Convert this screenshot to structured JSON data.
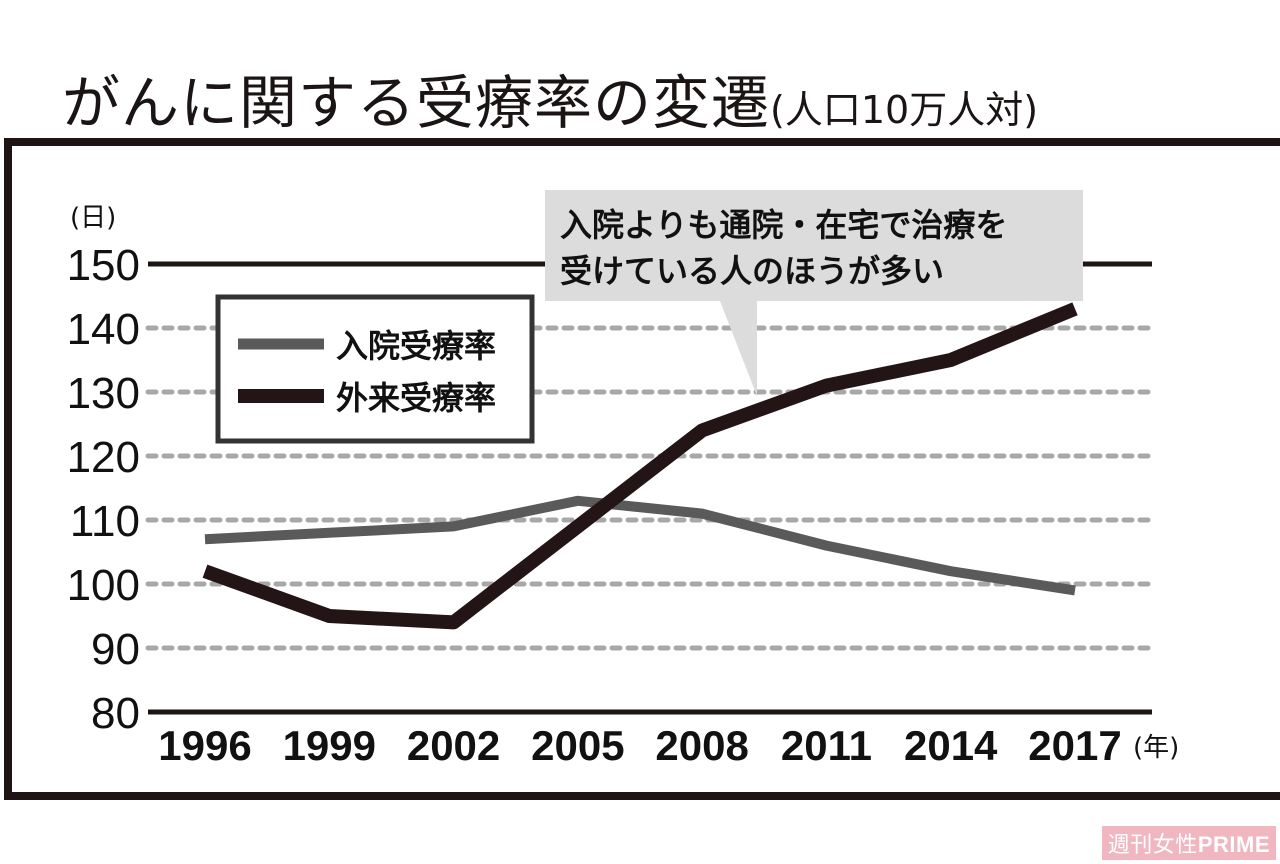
{
  "title": {
    "main": "がんに関する受療率の変遷",
    "sub": "(人口10万人対)"
  },
  "watermark": {
    "publisher": "週刊女性",
    "brand": "PRIME"
  },
  "colors": {
    "inpatient": "#5a5a5a",
    "outpatient": "#231515",
    "grid": "#a8a8a8",
    "callout_bg": "#dcdcdc",
    "frame": "#1f1414",
    "watermark_bg": "#f0b7c1"
  },
  "callout": {
    "line1": "入院よりも通院・在宅で治療を",
    "line2": "受けている人のほうが多い"
  },
  "legend": {
    "items": [
      {
        "label": "入院受療率",
        "series": "inpatient"
      },
      {
        "label": "外来受療率",
        "series": "outpatient"
      }
    ]
  },
  "axes": {
    "y_unit": "(日)",
    "x_unit": "(年)"
  },
  "chart_data": {
    "type": "line",
    "title": "がんに関する受療率の変遷(人口10万人対)",
    "xlabel": "(年)",
    "ylabel": "(日)",
    "categories": [
      "1996",
      "1999",
      "2002",
      "2005",
      "2008",
      "2011",
      "2014",
      "2017"
    ],
    "yticks": [
      80,
      90,
      100,
      110,
      120,
      130,
      140,
      150
    ],
    "ylim": [
      80,
      150
    ],
    "grid": true,
    "legend_position": "upper-left",
    "series": [
      {
        "name": "入院受療率",
        "values": [
          107,
          108,
          109,
          113,
          111,
          106,
          102,
          99
        ]
      },
      {
        "name": "外来受療率",
        "values": [
          102,
          95,
          94,
          109,
          124,
          131,
          135,
          143
        ]
      }
    ],
    "annotations": [
      "入院よりも通院・在宅で治療を受けている人のほうが多い"
    ]
  }
}
